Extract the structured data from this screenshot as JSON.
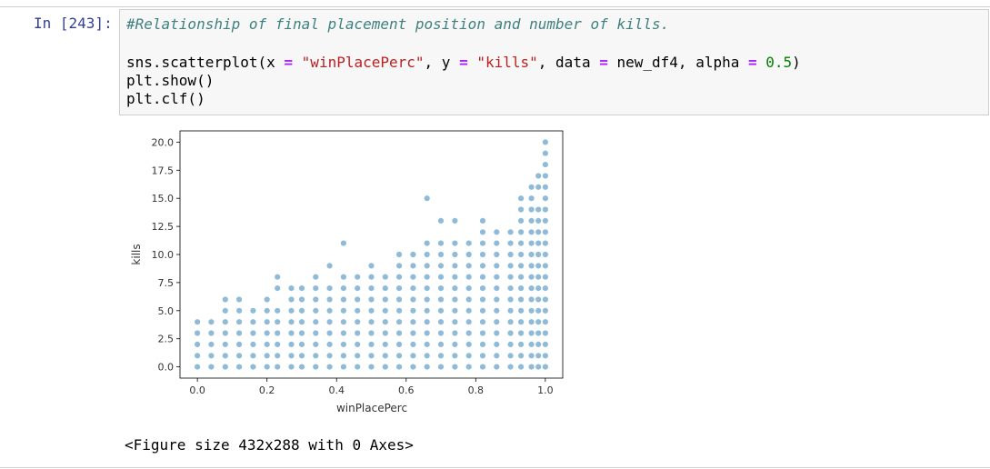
{
  "cell": {
    "prompt": "In [243]:",
    "comment": "#Relationship of final placement position and number of kills.",
    "line2": {
      "fn": "sns.scatterplot(x ",
      "eq1": "=",
      "s1": " ",
      "x_str": "\"winPlacePerc\"",
      "c1": ", y ",
      "eq2": "=",
      "s2": " ",
      "y_str": "\"kills\"",
      "c2": ", data ",
      "eq3": "=",
      "df": " new_df4, alpha ",
      "eq4": "=",
      "s4": " ",
      "alpha": "0.5",
      "close": ")"
    },
    "line3": "plt.show()",
    "line4": "plt.clf()"
  },
  "output": {
    "figure_text": "<Figure size 432x288 with 0 Axes>"
  },
  "chart_data": {
    "type": "scatter",
    "xlabel": "winPlacePerc",
    "ylabel": "kills",
    "xlim": [
      -0.05,
      1.05
    ],
    "ylim": [
      -1.0,
      21.0
    ],
    "xticks": [
      "0.0",
      "0.2",
      "0.4",
      "0.6",
      "0.8",
      "1.0"
    ],
    "yticks": [
      "0.0",
      "2.5",
      "5.0",
      "7.5",
      "10.0",
      "12.5",
      "15.0",
      "17.5",
      "20.0"
    ],
    "marker_color": "#1f77b4",
    "alpha": 0.5,
    "grid": false,
    "points": [
      [
        0.0,
        0
      ],
      [
        0.0,
        1
      ],
      [
        0.0,
        2
      ],
      [
        0.0,
        3
      ],
      [
        0.0,
        4
      ],
      [
        0.04,
        0
      ],
      [
        0.04,
        1
      ],
      [
        0.04,
        2
      ],
      [
        0.04,
        3
      ],
      [
        0.04,
        4
      ],
      [
        0.08,
        0
      ],
      [
        0.08,
        1
      ],
      [
        0.08,
        2
      ],
      [
        0.08,
        3
      ],
      [
        0.08,
        4
      ],
      [
        0.08,
        5
      ],
      [
        0.08,
        6
      ],
      [
        0.12,
        0
      ],
      [
        0.12,
        1
      ],
      [
        0.12,
        2
      ],
      [
        0.12,
        3
      ],
      [
        0.12,
        4
      ],
      [
        0.12,
        5
      ],
      [
        0.12,
        6
      ],
      [
        0.16,
        0
      ],
      [
        0.16,
        1
      ],
      [
        0.16,
        2
      ],
      [
        0.16,
        3
      ],
      [
        0.16,
        4
      ],
      [
        0.16,
        5
      ],
      [
        0.2,
        0
      ],
      [
        0.2,
        1
      ],
      [
        0.2,
        2
      ],
      [
        0.2,
        3
      ],
      [
        0.2,
        4
      ],
      [
        0.2,
        5
      ],
      [
        0.2,
        6
      ],
      [
        0.23,
        0
      ],
      [
        0.23,
        1
      ],
      [
        0.23,
        2
      ],
      [
        0.23,
        3
      ],
      [
        0.23,
        4
      ],
      [
        0.23,
        5
      ],
      [
        0.23,
        7
      ],
      [
        0.23,
        8
      ],
      [
        0.27,
        0
      ],
      [
        0.27,
        1
      ],
      [
        0.27,
        2
      ],
      [
        0.27,
        3
      ],
      [
        0.27,
        4
      ],
      [
        0.27,
        5
      ],
      [
        0.27,
        6
      ],
      [
        0.27,
        7
      ],
      [
        0.3,
        0
      ],
      [
        0.3,
        1
      ],
      [
        0.3,
        2
      ],
      [
        0.3,
        3
      ],
      [
        0.3,
        4
      ],
      [
        0.3,
        5
      ],
      [
        0.3,
        6
      ],
      [
        0.3,
        7
      ],
      [
        0.34,
        0
      ],
      [
        0.34,
        1
      ],
      [
        0.34,
        2
      ],
      [
        0.34,
        3
      ],
      [
        0.34,
        4
      ],
      [
        0.34,
        5
      ],
      [
        0.34,
        6
      ],
      [
        0.34,
        7
      ],
      [
        0.34,
        8
      ],
      [
        0.38,
        0
      ],
      [
        0.38,
        1
      ],
      [
        0.38,
        2
      ],
      [
        0.38,
        3
      ],
      [
        0.38,
        4
      ],
      [
        0.38,
        5
      ],
      [
        0.38,
        6
      ],
      [
        0.38,
        7
      ],
      [
        0.38,
        9
      ],
      [
        0.42,
        0
      ],
      [
        0.42,
        1
      ],
      [
        0.42,
        2
      ],
      [
        0.42,
        3
      ],
      [
        0.42,
        4
      ],
      [
        0.42,
        5
      ],
      [
        0.42,
        6
      ],
      [
        0.42,
        7
      ],
      [
        0.42,
        8
      ],
      [
        0.42,
        11
      ],
      [
        0.46,
        0
      ],
      [
        0.46,
        1
      ],
      [
        0.46,
        2
      ],
      [
        0.46,
        3
      ],
      [
        0.46,
        4
      ],
      [
        0.46,
        5
      ],
      [
        0.46,
        6
      ],
      [
        0.46,
        7
      ],
      [
        0.46,
        8
      ],
      [
        0.5,
        0
      ],
      [
        0.5,
        1
      ],
      [
        0.5,
        2
      ],
      [
        0.5,
        3
      ],
      [
        0.5,
        4
      ],
      [
        0.5,
        5
      ],
      [
        0.5,
        6
      ],
      [
        0.5,
        7
      ],
      [
        0.5,
        8
      ],
      [
        0.5,
        9
      ],
      [
        0.54,
        0
      ],
      [
        0.54,
        1
      ],
      [
        0.54,
        2
      ],
      [
        0.54,
        3
      ],
      [
        0.54,
        4
      ],
      [
        0.54,
        5
      ],
      [
        0.54,
        6
      ],
      [
        0.54,
        7
      ],
      [
        0.54,
        8
      ],
      [
        0.58,
        0
      ],
      [
        0.58,
        1
      ],
      [
        0.58,
        2
      ],
      [
        0.58,
        3
      ],
      [
        0.58,
        4
      ],
      [
        0.58,
        5
      ],
      [
        0.58,
        6
      ],
      [
        0.58,
        7
      ],
      [
        0.58,
        8
      ],
      [
        0.58,
        9
      ],
      [
        0.58,
        10
      ],
      [
        0.62,
        0
      ],
      [
        0.62,
        1
      ],
      [
        0.62,
        2
      ],
      [
        0.62,
        3
      ],
      [
        0.62,
        4
      ],
      [
        0.62,
        5
      ],
      [
        0.62,
        6
      ],
      [
        0.62,
        7
      ],
      [
        0.62,
        8
      ],
      [
        0.62,
        9
      ],
      [
        0.62,
        10
      ],
      [
        0.66,
        0
      ],
      [
        0.66,
        1
      ],
      [
        0.66,
        2
      ],
      [
        0.66,
        3
      ],
      [
        0.66,
        4
      ],
      [
        0.66,
        5
      ],
      [
        0.66,
        6
      ],
      [
        0.66,
        7
      ],
      [
        0.66,
        8
      ],
      [
        0.66,
        9
      ],
      [
        0.66,
        10
      ],
      [
        0.66,
        11
      ],
      [
        0.66,
        15
      ],
      [
        0.7,
        0
      ],
      [
        0.7,
        1
      ],
      [
        0.7,
        2
      ],
      [
        0.7,
        3
      ],
      [
        0.7,
        4
      ],
      [
        0.7,
        5
      ],
      [
        0.7,
        6
      ],
      [
        0.7,
        7
      ],
      [
        0.7,
        8
      ],
      [
        0.7,
        9
      ],
      [
        0.7,
        10
      ],
      [
        0.7,
        11
      ],
      [
        0.7,
        13
      ],
      [
        0.74,
        0
      ],
      [
        0.74,
        1
      ],
      [
        0.74,
        2
      ],
      [
        0.74,
        3
      ],
      [
        0.74,
        4
      ],
      [
        0.74,
        5
      ],
      [
        0.74,
        6
      ],
      [
        0.74,
        7
      ],
      [
        0.74,
        8
      ],
      [
        0.74,
        9
      ],
      [
        0.74,
        10
      ],
      [
        0.74,
        11
      ],
      [
        0.74,
        13
      ],
      [
        0.78,
        0
      ],
      [
        0.78,
        1
      ],
      [
        0.78,
        2
      ],
      [
        0.78,
        3
      ],
      [
        0.78,
        4
      ],
      [
        0.78,
        5
      ],
      [
        0.78,
        6
      ],
      [
        0.78,
        7
      ],
      [
        0.78,
        8
      ],
      [
        0.78,
        9
      ],
      [
        0.78,
        10
      ],
      [
        0.78,
        11
      ],
      [
        0.82,
        0
      ],
      [
        0.82,
        1
      ],
      [
        0.82,
        2
      ],
      [
        0.82,
        3
      ],
      [
        0.82,
        4
      ],
      [
        0.82,
        5
      ],
      [
        0.82,
        6
      ],
      [
        0.82,
        7
      ],
      [
        0.82,
        8
      ],
      [
        0.82,
        9
      ],
      [
        0.82,
        10
      ],
      [
        0.82,
        11
      ],
      [
        0.82,
        12
      ],
      [
        0.82,
        13
      ],
      [
        0.86,
        0
      ],
      [
        0.86,
        1
      ],
      [
        0.86,
        2
      ],
      [
        0.86,
        3
      ],
      [
        0.86,
        4
      ],
      [
        0.86,
        5
      ],
      [
        0.86,
        6
      ],
      [
        0.86,
        7
      ],
      [
        0.86,
        8
      ],
      [
        0.86,
        9
      ],
      [
        0.86,
        10
      ],
      [
        0.86,
        11
      ],
      [
        0.86,
        12
      ],
      [
        0.9,
        0
      ],
      [
        0.9,
        1
      ],
      [
        0.9,
        2
      ],
      [
        0.9,
        3
      ],
      [
        0.9,
        4
      ],
      [
        0.9,
        5
      ],
      [
        0.9,
        6
      ],
      [
        0.9,
        7
      ],
      [
        0.9,
        8
      ],
      [
        0.9,
        9
      ],
      [
        0.9,
        10
      ],
      [
        0.9,
        11
      ],
      [
        0.9,
        12
      ],
      [
        0.93,
        0
      ],
      [
        0.93,
        1
      ],
      [
        0.93,
        2
      ],
      [
        0.93,
        3
      ],
      [
        0.93,
        4
      ],
      [
        0.93,
        5
      ],
      [
        0.93,
        6
      ],
      [
        0.93,
        7
      ],
      [
        0.93,
        8
      ],
      [
        0.93,
        9
      ],
      [
        0.93,
        10
      ],
      [
        0.93,
        11
      ],
      [
        0.93,
        12
      ],
      [
        0.93,
        13
      ],
      [
        0.93,
        14
      ],
      [
        0.93,
        15
      ],
      [
        0.96,
        0
      ],
      [
        0.96,
        1
      ],
      [
        0.96,
        2
      ],
      [
        0.96,
        3
      ],
      [
        0.96,
        4
      ],
      [
        0.96,
        5
      ],
      [
        0.96,
        6
      ],
      [
        0.96,
        7
      ],
      [
        0.96,
        8
      ],
      [
        0.96,
        9
      ],
      [
        0.96,
        10
      ],
      [
        0.96,
        11
      ],
      [
        0.96,
        12
      ],
      [
        0.96,
        13
      ],
      [
        0.96,
        14
      ],
      [
        0.96,
        15
      ],
      [
        0.96,
        16
      ],
      [
        0.98,
        0
      ],
      [
        0.98,
        1
      ],
      [
        0.98,
        2
      ],
      [
        0.98,
        3
      ],
      [
        0.98,
        4
      ],
      [
        0.98,
        5
      ],
      [
        0.98,
        6
      ],
      [
        0.98,
        7
      ],
      [
        0.98,
        8
      ],
      [
        0.98,
        9
      ],
      [
        0.98,
        10
      ],
      [
        0.98,
        11
      ],
      [
        0.98,
        12
      ],
      [
        0.98,
        13
      ],
      [
        0.98,
        14
      ],
      [
        0.98,
        16
      ],
      [
        0.98,
        17
      ],
      [
        1.0,
        0
      ],
      [
        1.0,
        1
      ],
      [
        1.0,
        2
      ],
      [
        1.0,
        3
      ],
      [
        1.0,
        4
      ],
      [
        1.0,
        5
      ],
      [
        1.0,
        6
      ],
      [
        1.0,
        7
      ],
      [
        1.0,
        8
      ],
      [
        1.0,
        9
      ],
      [
        1.0,
        10
      ],
      [
        1.0,
        11
      ],
      [
        1.0,
        12
      ],
      [
        1.0,
        13
      ],
      [
        1.0,
        14
      ],
      [
        1.0,
        15
      ],
      [
        1.0,
        16
      ],
      [
        1.0,
        17
      ],
      [
        1.0,
        18
      ],
      [
        1.0,
        19
      ],
      [
        1.0,
        20
      ]
    ]
  }
}
